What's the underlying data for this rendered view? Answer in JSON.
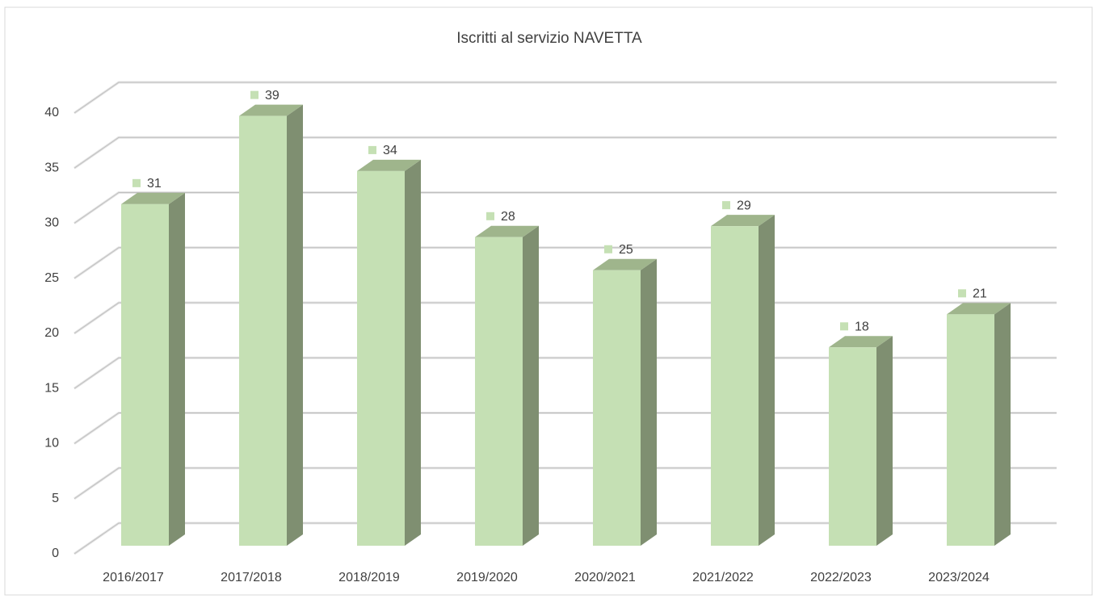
{
  "chart_data": {
    "type": "bar3d",
    "title": "Iscritti al servizio NAVETTA",
    "categories": [
      "2016/2017",
      "2017/2018",
      "2018/2019",
      "2019/2020",
      "2020/2021",
      "2021/2022",
      "2022/2023",
      "2023/2024"
    ],
    "values": [
      31,
      39,
      34,
      28,
      25,
      29,
      18,
      21
    ],
    "color": "#c5e0b4",
    "ylim": [
      0,
      40
    ],
    "yticks": [
      0,
      5,
      10,
      15,
      20,
      25,
      30,
      35,
      40
    ],
    "grid": true
  }
}
